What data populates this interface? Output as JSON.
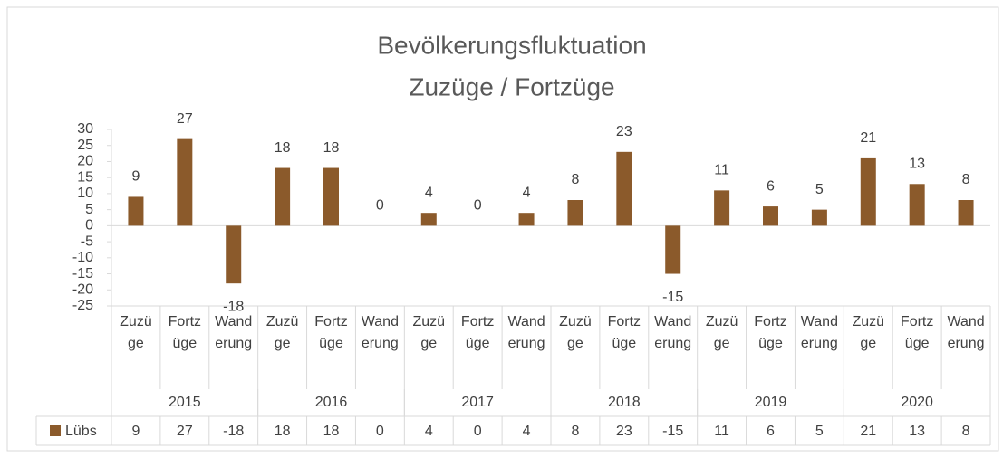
{
  "chart_data": {
    "type": "bar",
    "title": "Bevölkerungsfluktuation",
    "subtitle": "Zuzüge / Fortzüge",
    "categories": [
      "Zuzüge",
      "Fortzüge",
      "Wanderung",
      "Zuzüge",
      "Fortzüge",
      "Wanderung",
      "Zuzüge",
      "Fortzüge",
      "Wanderung",
      "Zuzüge",
      "Fortzüge",
      "Wanderung",
      "Zuzüge",
      "Fortzüge",
      "Wanderung",
      "Zuzüge",
      "Fortzüge",
      "Wanderung"
    ],
    "groups": [
      "2015",
      "2016",
      "2017",
      "2018",
      "2019",
      "2020"
    ],
    "series": [
      {
        "name": "Lübs",
        "color": "#8b5a2b",
        "values": [
          9,
          27,
          -18,
          18,
          18,
          0,
          4,
          0,
          4,
          8,
          23,
          -15,
          11,
          6,
          5,
          21,
          13,
          8
        ]
      }
    ],
    "ylim": [
      -25,
      30
    ],
    "yticks": [
      30,
      25,
      20,
      15,
      10,
      5,
      0,
      -5,
      -10,
      -15,
      -20,
      -25
    ],
    "data_table": true
  }
}
